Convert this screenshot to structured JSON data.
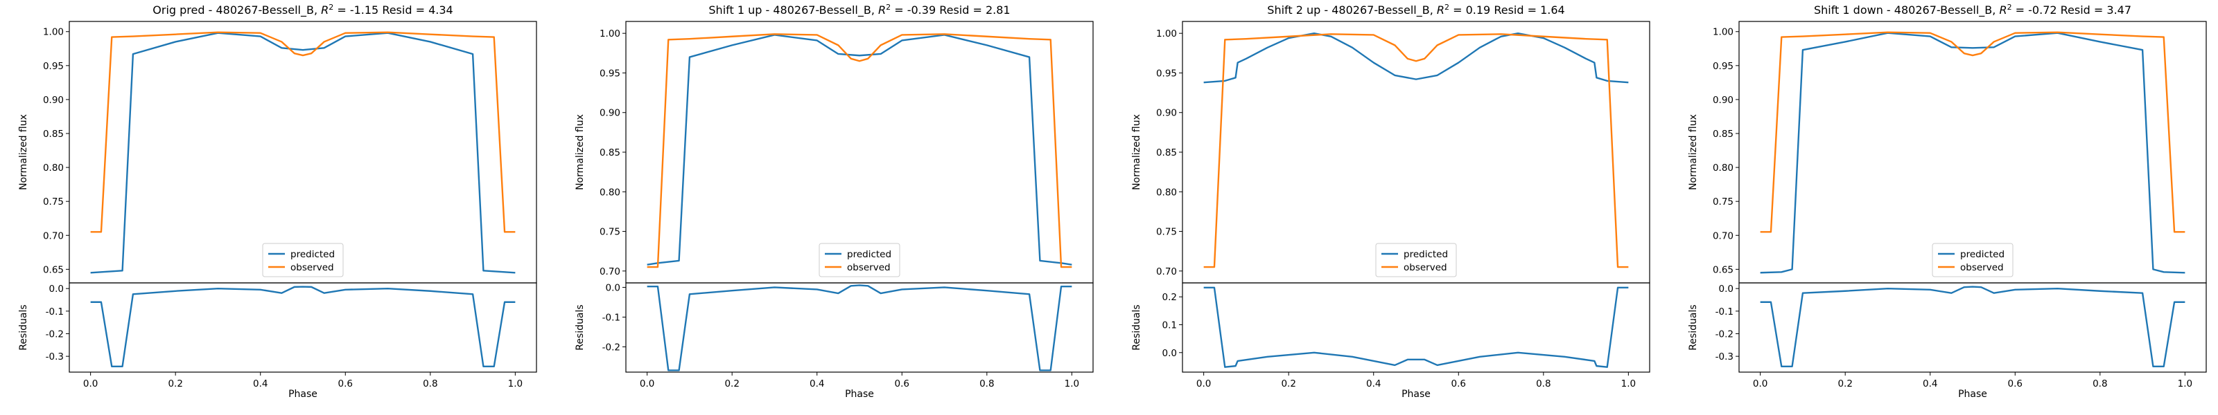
{
  "colors": {
    "predicted": "#1f77b4",
    "observed": "#ff7f0e",
    "axes": "#000000"
  },
  "chart_data": [
    {
      "type": "line",
      "title": "Orig pred - 480267-Bessell_B, R² = -1.15 Resid = 4.34",
      "title_parts": {
        "pre": "Orig pred - 480267-Bessell_B, ",
        "r": "R",
        "sup": "2",
        "post": " = -1.15 Resid = 4.34"
      },
      "xlabel": "Phase",
      "ylabel": "Normalized flux",
      "resid_ylabel": "Residuals",
      "xlim": [
        -0.05,
        1.05
      ],
      "ylim": [
        0.63,
        1.015
      ],
      "resid_ylim": [
        -0.37,
        0.025
      ],
      "x_ticks": [
        "0.0",
        "0.2",
        "0.4",
        "0.6",
        "0.8",
        "1.0"
      ],
      "y_ticks": [
        "0.65",
        "0.70",
        "0.75",
        "0.80",
        "0.85",
        "0.90",
        "0.95",
        "1.00"
      ],
      "resid_ticks": [
        "-0.3",
        "-0.2",
        "-0.1",
        "0.0"
      ],
      "legend": {
        "placement": "lower-center",
        "entries": [
          "predicted",
          "observed"
        ]
      },
      "series": [
        {
          "name": "predicted",
          "x": [
            0.0,
            0.075,
            0.1,
            0.2,
            0.3,
            0.4,
            0.45,
            0.5,
            0.55,
            0.6,
            0.7,
            0.8,
            0.9,
            0.925,
            1.0
          ],
          "y": [
            0.645,
            0.648,
            0.967,
            0.985,
            0.998,
            0.993,
            0.976,
            0.973,
            0.976,
            0.993,
            0.998,
            0.985,
            0.967,
            0.648,
            0.645
          ]
        },
        {
          "name": "observed",
          "x": [
            0.0,
            0.025,
            0.05,
            0.1,
            0.2,
            0.3,
            0.4,
            0.45,
            0.48,
            0.5,
            0.52,
            0.55,
            0.6,
            0.7,
            0.8,
            0.9,
            0.95,
            0.975,
            1.0
          ],
          "y": [
            0.705,
            0.705,
            0.992,
            0.993,
            0.996,
            0.999,
            0.998,
            0.985,
            0.968,
            0.965,
            0.968,
            0.985,
            0.998,
            0.999,
            0.996,
            0.993,
            0.992,
            0.705,
            0.705
          ]
        }
      ],
      "residuals": {
        "x": [
          0.0,
          0.025,
          0.05,
          0.075,
          0.1,
          0.2,
          0.3,
          0.4,
          0.45,
          0.48,
          0.5,
          0.52,
          0.55,
          0.6,
          0.7,
          0.8,
          0.9,
          0.925,
          0.95,
          0.975,
          1.0
        ],
        "y": [
          -0.06,
          -0.06,
          -0.345,
          -0.345,
          -0.025,
          -0.011,
          0.0,
          -0.005,
          -0.02,
          0.007,
          0.008,
          0.007,
          -0.02,
          -0.005,
          0.0,
          -0.011,
          -0.025,
          -0.345,
          -0.345,
          -0.06,
          -0.06
        ]
      }
    },
    {
      "type": "line",
      "title": "Shift 1 up - 480267-Bessell_B, R² = -0.39 Resid = 2.81",
      "title_parts": {
        "pre": "Shift 1 up - 480267-Bessell_B, ",
        "r": "R",
        "sup": "2",
        "post": " = -0.39 Resid = 2.81"
      },
      "xlabel": "Phase",
      "ylabel": "Normalized flux",
      "resid_ylabel": "Residuals",
      "xlim": [
        -0.05,
        1.05
      ],
      "ylim": [
        0.685,
        1.015
      ],
      "resid_ylim": [
        -0.285,
        0.015
      ],
      "x_ticks": [
        "0.0",
        "0.2",
        "0.4",
        "0.6",
        "0.8",
        "1.0"
      ],
      "y_ticks": [
        "0.70",
        "0.75",
        "0.80",
        "0.85",
        "0.90",
        "0.95",
        "1.00"
      ],
      "resid_ticks": [
        "-0.2",
        "-0.1",
        "0.0"
      ],
      "legend": {
        "placement": "lower-center",
        "entries": [
          "predicted",
          "observed"
        ]
      },
      "series": [
        {
          "name": "predicted",
          "x": [
            0.0,
            0.025,
            0.075,
            0.1,
            0.2,
            0.3,
            0.4,
            0.45,
            0.5,
            0.55,
            0.6,
            0.7,
            0.8,
            0.9,
            0.925,
            0.975,
            1.0
          ],
          "y": [
            0.708,
            0.71,
            0.713,
            0.97,
            0.985,
            0.998,
            0.991,
            0.974,
            0.972,
            0.974,
            0.991,
            0.998,
            0.985,
            0.97,
            0.713,
            0.71,
            0.708
          ]
        },
        {
          "name": "observed",
          "x": [
            0.0,
            0.025,
            0.05,
            0.1,
            0.2,
            0.3,
            0.4,
            0.45,
            0.48,
            0.5,
            0.52,
            0.55,
            0.6,
            0.7,
            0.8,
            0.9,
            0.95,
            0.975,
            1.0
          ],
          "y": [
            0.705,
            0.705,
            0.992,
            0.993,
            0.996,
            0.999,
            0.998,
            0.985,
            0.968,
            0.965,
            0.968,
            0.985,
            0.998,
            0.999,
            0.996,
            0.993,
            0.992,
            0.705,
            0.705
          ]
        }
      ],
      "residuals": {
        "x": [
          0.0,
          0.025,
          0.05,
          0.075,
          0.1,
          0.2,
          0.3,
          0.4,
          0.45,
          0.48,
          0.5,
          0.52,
          0.55,
          0.6,
          0.7,
          0.8,
          0.9,
          0.925,
          0.95,
          0.975,
          1.0
        ],
        "y": [
          0.003,
          0.003,
          -0.279,
          -0.279,
          -0.023,
          -0.011,
          0.0,
          -0.007,
          -0.02,
          0.005,
          0.007,
          0.005,
          -0.02,
          -0.007,
          0.0,
          -0.011,
          -0.023,
          -0.279,
          -0.279,
          0.003,
          0.003
        ]
      }
    },
    {
      "type": "line",
      "title": "Shift 2 up - 480267-Bessell_B, R² = 0.19 Resid = 1.64",
      "title_parts": {
        "pre": "Shift 2 up - 480267-Bessell_B, ",
        "r": "R",
        "sup": "2",
        "post": " = 0.19 Resid = 1.64"
      },
      "xlabel": "Phase",
      "ylabel": "Normalized flux",
      "resid_ylabel": "Residuals",
      "xlim": [
        -0.05,
        1.05
      ],
      "ylim": [
        0.685,
        1.015
      ],
      "resid_ylim": [
        -0.07,
        0.25
      ],
      "x_ticks": [
        "0.0",
        "0.2",
        "0.4",
        "0.6",
        "0.8",
        "1.0"
      ],
      "y_ticks": [
        "0.70",
        "0.75",
        "0.80",
        "0.85",
        "0.90",
        "0.95",
        "1.00"
      ],
      "resid_ticks": [
        "0.0",
        "0.1",
        "0.2"
      ],
      "legend": {
        "placement": "lower-center",
        "entries": [
          "predicted",
          "observed"
        ]
      },
      "series": [
        {
          "name": "predicted",
          "x": [
            0.0,
            0.05,
            0.075,
            0.08,
            0.1,
            0.15,
            0.2,
            0.26,
            0.3,
            0.35,
            0.4,
            0.45,
            0.5,
            0.55,
            0.6,
            0.65,
            0.7,
            0.74,
            0.8,
            0.85,
            0.9,
            0.92,
            0.925,
            0.95,
            1.0
          ],
          "y": [
            0.938,
            0.94,
            0.944,
            0.963,
            0.968,
            0.982,
            0.994,
            1.0,
            0.996,
            0.982,
            0.963,
            0.947,
            0.942,
            0.947,
            0.963,
            0.982,
            0.996,
            1.0,
            0.994,
            0.982,
            0.968,
            0.963,
            0.944,
            0.94,
            0.938
          ]
        },
        {
          "name": "observed",
          "x": [
            0.0,
            0.025,
            0.05,
            0.1,
            0.2,
            0.3,
            0.4,
            0.45,
            0.48,
            0.5,
            0.52,
            0.55,
            0.6,
            0.7,
            0.8,
            0.9,
            0.95,
            0.975,
            1.0
          ],
          "y": [
            0.705,
            0.705,
            0.992,
            0.993,
            0.996,
            0.999,
            0.998,
            0.985,
            0.968,
            0.965,
            0.968,
            0.985,
            0.998,
            0.999,
            0.996,
            0.993,
            0.992,
            0.705,
            0.705
          ]
        }
      ],
      "residuals": {
        "x": [
          0.0,
          0.025,
          0.05,
          0.075,
          0.08,
          0.15,
          0.26,
          0.35,
          0.45,
          0.48,
          0.5,
          0.52,
          0.55,
          0.65,
          0.74,
          0.85,
          0.92,
          0.925,
          0.95,
          0.975,
          1.0
        ],
        "y": [
          0.233,
          0.233,
          -0.052,
          -0.048,
          -0.03,
          -0.015,
          0.0,
          -0.015,
          -0.045,
          -0.025,
          -0.025,
          -0.025,
          -0.045,
          -0.015,
          0.0,
          -0.015,
          -0.03,
          -0.048,
          -0.052,
          0.233,
          0.233
        ]
      }
    },
    {
      "type": "line",
      "title": "Shift 1 down - 480267-Bessell_B, R² = -0.72 Resid = 3.47",
      "title_parts": {
        "pre": "Shift 1 down - 480267-Bessell_B, ",
        "r": "R",
        "sup": "2",
        "post": " = -0.72 Resid = 3.47"
      },
      "xlabel": "Phase",
      "ylabel": "Normalized flux",
      "resid_ylabel": "Residuals",
      "xlim": [
        -0.05,
        1.05
      ],
      "ylim": [
        0.63,
        1.015
      ],
      "resid_ylim": [
        -0.37,
        0.025
      ],
      "x_ticks": [
        "0.0",
        "0.2",
        "0.4",
        "0.6",
        "0.8",
        "1.0"
      ],
      "y_ticks": [
        "0.65",
        "0.70",
        "0.75",
        "0.80",
        "0.85",
        "0.90",
        "0.95",
        "1.00"
      ],
      "resid_ticks": [
        "-0.3",
        "-0.2",
        "-0.1",
        "0.0"
      ],
      "legend": {
        "placement": "lower-center",
        "entries": [
          "predicted",
          "observed"
        ]
      },
      "series": [
        {
          "name": "predicted",
          "x": [
            0.0,
            0.05,
            0.075,
            0.1,
            0.2,
            0.3,
            0.4,
            0.45,
            0.5,
            0.55,
            0.6,
            0.7,
            0.8,
            0.9,
            0.925,
            0.95,
            1.0
          ],
          "y": [
            0.645,
            0.646,
            0.65,
            0.973,
            0.985,
            0.998,
            0.993,
            0.977,
            0.976,
            0.977,
            0.993,
            0.998,
            0.985,
            0.973,
            0.65,
            0.646,
            0.645
          ]
        },
        {
          "name": "observed",
          "x": [
            0.0,
            0.025,
            0.05,
            0.1,
            0.2,
            0.3,
            0.4,
            0.45,
            0.48,
            0.5,
            0.52,
            0.55,
            0.6,
            0.7,
            0.8,
            0.9,
            0.95,
            0.975,
            1.0
          ],
          "y": [
            0.705,
            0.705,
            0.992,
            0.993,
            0.996,
            0.999,
            0.998,
            0.985,
            0.968,
            0.965,
            0.968,
            0.985,
            0.998,
            0.999,
            0.996,
            0.993,
            0.992,
            0.705,
            0.705
          ]
        }
      ],
      "residuals": {
        "x": [
          0.0,
          0.025,
          0.05,
          0.075,
          0.1,
          0.2,
          0.3,
          0.4,
          0.45,
          0.48,
          0.5,
          0.52,
          0.55,
          0.6,
          0.7,
          0.8,
          0.9,
          0.925,
          0.95,
          0.975,
          1.0
        ],
        "y": [
          -0.06,
          -0.06,
          -0.345,
          -0.345,
          -0.02,
          -0.011,
          0.0,
          -0.005,
          -0.02,
          0.006,
          0.008,
          0.006,
          -0.02,
          -0.005,
          0.0,
          -0.011,
          -0.02,
          -0.345,
          -0.345,
          -0.06,
          -0.06
        ]
      }
    }
  ]
}
